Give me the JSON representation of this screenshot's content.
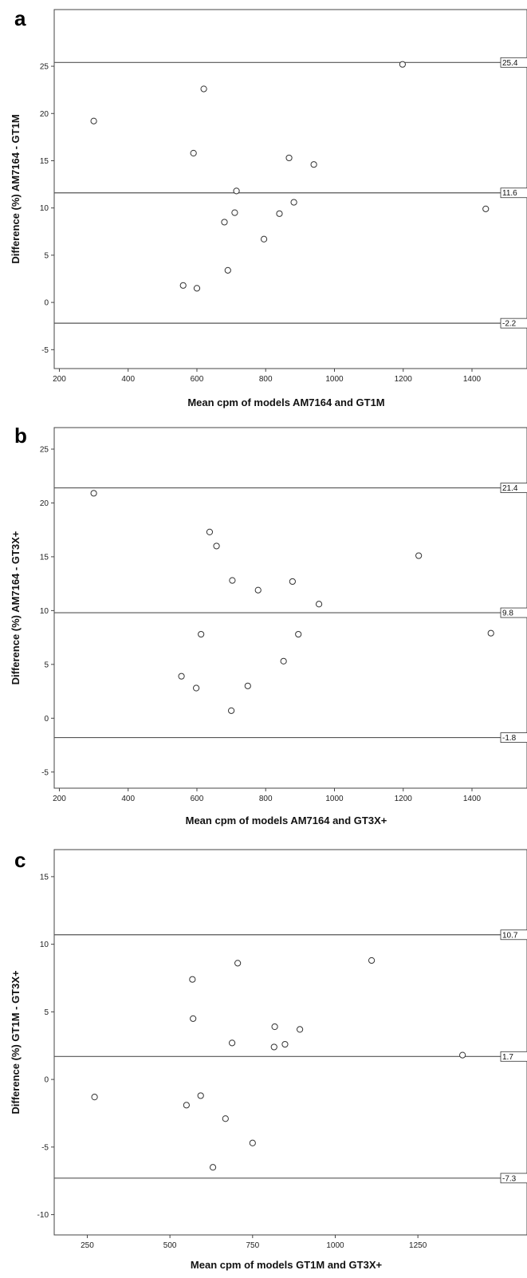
{
  "chart_data": [
    {
      "type": "scatter",
      "panel": "a",
      "xlabel": "Mean cpm of models AM7164 and GT1M",
      "ylabel": "Difference (%) AM7164 - GT1M",
      "xlim": [
        185,
        1560
      ],
      "ylim": [
        -7,
        31
      ],
      "xticks": [
        200,
        400,
        600,
        800,
        1000,
        1200,
        1400
      ],
      "yticks": [
        -5,
        0,
        5,
        10,
        15,
        20,
        25
      ],
      "reference_lines": [
        {
          "y": 25.4,
          "label": "25.4"
        },
        {
          "y": 11.6,
          "label": "11.6"
        },
        {
          "y": -2.2,
          "label": "-2.2"
        }
      ],
      "points": [
        {
          "x": 300,
          "y": 19.2
        },
        {
          "x": 560,
          "y": 1.8
        },
        {
          "x": 590,
          "y": 15.8
        },
        {
          "x": 600,
          "y": 1.5
        },
        {
          "x": 620,
          "y": 22.6
        },
        {
          "x": 680,
          "y": 8.5
        },
        {
          "x": 690,
          "y": 3.4
        },
        {
          "x": 710,
          "y": 9.5
        },
        {
          "x": 715,
          "y": 11.8
        },
        {
          "x": 795,
          "y": 6.7
        },
        {
          "x": 840,
          "y": 9.4
        },
        {
          "x": 868,
          "y": 15.3
        },
        {
          "x": 882,
          "y": 10.6
        },
        {
          "x": 940,
          "y": 14.6
        },
        {
          "x": 1198,
          "y": 25.2
        },
        {
          "x": 1440,
          "y": 9.9
        }
      ]
    },
    {
      "type": "scatter",
      "panel": "b",
      "xlabel": "Mean cpm of models AM7164 and GT3X+",
      "ylabel": "Difference (%) AM7164 - GT3X+",
      "xlim": [
        185,
        1560
      ],
      "ylim": [
        -6.5,
        27
      ],
      "xticks": [
        200,
        400,
        600,
        800,
        1000,
        1200,
        1400
      ],
      "yticks": [
        -5,
        0,
        5,
        10,
        15,
        20,
        25
      ],
      "reference_lines": [
        {
          "y": 21.4,
          "label": "21.4"
        },
        {
          "y": 9.8,
          "label": "9.8"
        },
        {
          "y": -1.8,
          "label": "-1.8"
        }
      ],
      "points": [
        {
          "x": 300,
          "y": 20.9
        },
        {
          "x": 555,
          "y": 3.9
        },
        {
          "x": 598,
          "y": 2.8
        },
        {
          "x": 612,
          "y": 7.8
        },
        {
          "x": 637,
          "y": 17.3
        },
        {
          "x": 657,
          "y": 16.0
        },
        {
          "x": 700,
          "y": 0.7
        },
        {
          "x": 703,
          "y": 12.8
        },
        {
          "x": 748,
          "y": 3.0
        },
        {
          "x": 778,
          "y": 11.9
        },
        {
          "x": 852,
          "y": 5.3
        },
        {
          "x": 878,
          "y": 12.7
        },
        {
          "x": 895,
          "y": 7.8
        },
        {
          "x": 955,
          "y": 10.6
        },
        {
          "x": 1245,
          "y": 15.1
        },
        {
          "x": 1455,
          "y": 7.9
        }
      ]
    },
    {
      "type": "scatter",
      "panel": "c",
      "xlabel": "Mean cpm of models GT1M and GT3X+",
      "ylabel": "Difference (%) GT1M - GT3X+",
      "xlim": [
        150,
        1580
      ],
      "ylim": [
        -11.5,
        17
      ],
      "xticks": [
        250,
        500,
        750,
        1000,
        1250
      ],
      "yticks": [
        -10,
        -5,
        0,
        5,
        10,
        15
      ],
      "reference_lines": [
        {
          "y": 10.7,
          "label": "10.7"
        },
        {
          "y": 1.7,
          "label": "1.7"
        },
        {
          "y": -7.3,
          "label": "-7.3"
        }
      ],
      "points": [
        {
          "x": 272,
          "y": -1.3
        },
        {
          "x": 550,
          "y": -1.9
        },
        {
          "x": 568,
          "y": 7.4
        },
        {
          "x": 570,
          "y": 4.5
        },
        {
          "x": 593,
          "y": -1.2
        },
        {
          "x": 630,
          "y": -6.5
        },
        {
          "x": 668,
          "y": -2.9
        },
        {
          "x": 688,
          "y": 2.7
        },
        {
          "x": 705,
          "y": 8.6
        },
        {
          "x": 750,
          "y": -4.7
        },
        {
          "x": 815,
          "y": 2.4
        },
        {
          "x": 817,
          "y": 3.9
        },
        {
          "x": 848,
          "y": 2.6
        },
        {
          "x": 893,
          "y": 3.7
        },
        {
          "x": 1110,
          "y": 8.8
        },
        {
          "x": 1385,
          "y": 1.8
        }
      ]
    }
  ]
}
